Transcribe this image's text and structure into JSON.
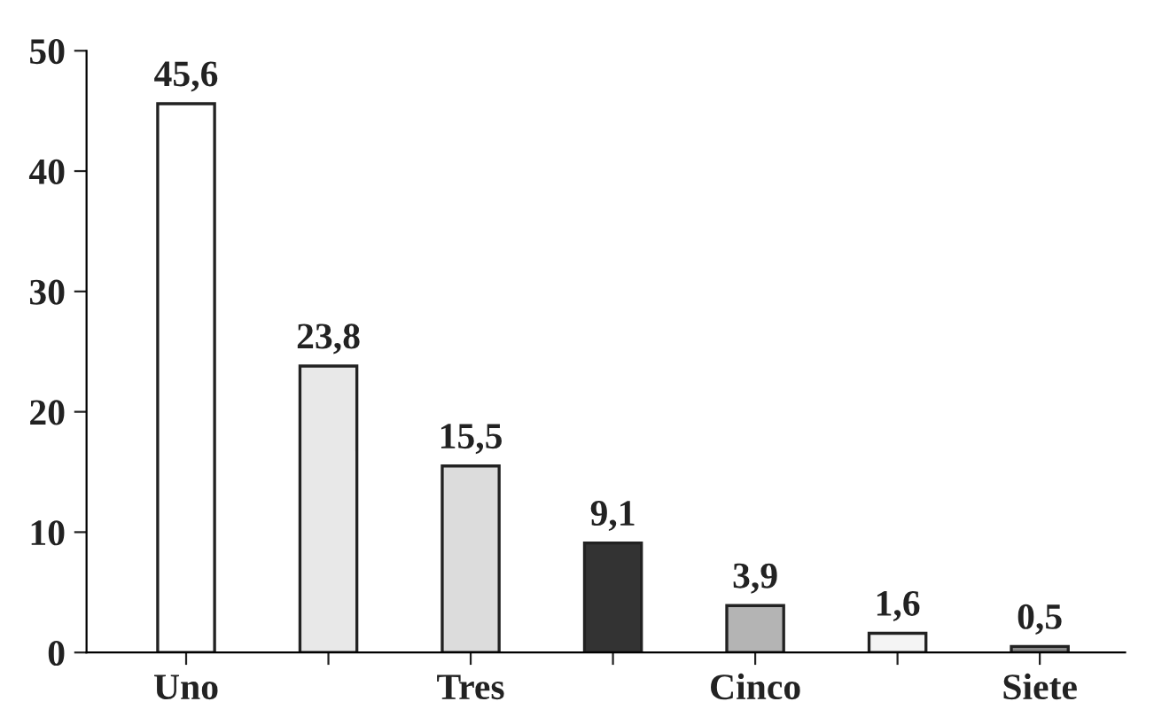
{
  "chart_data": {
    "type": "bar",
    "categories": [
      "Uno",
      null,
      "Tres",
      null,
      "Cinco",
      null,
      "Siete"
    ],
    "values": [
      45.6,
      23.8,
      15.5,
      9.1,
      3.9,
      1.6,
      0.5
    ],
    "colors": [
      "#ffffff",
      "#e8e8e8",
      "#dcdcdc",
      "#333333",
      "#b4b4b4",
      "#f4f4f4",
      "#8a8a8a"
    ],
    "value_labels": [
      "45,6",
      "23,8",
      "15,5",
      "9,1",
      "3,9",
      "1,6",
      "0,5"
    ],
    "ylim": [
      0,
      50
    ],
    "yticks": [
      0,
      10,
      20,
      30,
      40,
      50
    ],
    "grid": false,
    "legend": false
  }
}
